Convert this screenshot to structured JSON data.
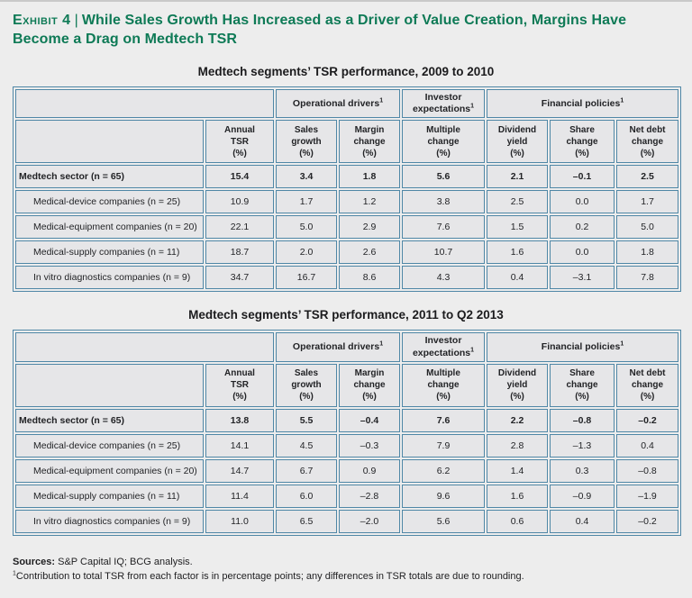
{
  "page": {
    "exhibit_label": "Exhibit 4",
    "divider": "|",
    "title": "While Sales Growth Has Increased as a Driver of Value Creation, Margins Have Become a Drag on Medtech TSR"
  },
  "tables": [
    {
      "title": "Medtech segments’ TSR performance, 2009 to 2010",
      "group_headers": [
        {
          "label": "",
          "sup": "",
          "span": 2
        },
        {
          "label": "Operational drivers",
          "sup": "1",
          "span": 2
        },
        {
          "label": "Investor expectations",
          "sup": "1",
          "span": 1
        },
        {
          "label": "Financial policies",
          "sup": "1",
          "span": 3
        }
      ],
      "column_headers": [
        "",
        "Annual\nTSR\n(%)",
        "Sales\ngrowth\n(%)",
        "Margin\nchange\n(%)",
        "Multiple\nchange\n(%)",
        "Dividend\nyield\n(%)",
        "Share\nchange\n(%)",
        "Net debt\nchange\n(%)"
      ],
      "rows": [
        {
          "label": "Medtech sector (n = 65)",
          "bold": true,
          "indent": false,
          "values": [
            "15.4",
            "3.4",
            "1.8",
            "5.6",
            "2.1",
            "–0.1",
            "2.5"
          ]
        },
        {
          "label": "Medical-device companies (n = 25)",
          "bold": false,
          "indent": true,
          "values": [
            "10.9",
            "1.7",
            "1.2",
            "3.8",
            "2.5",
            "0.0",
            "1.7"
          ]
        },
        {
          "label": "Medical-equipment companies (n = 20)",
          "bold": false,
          "indent": true,
          "values": [
            "22.1",
            "5.0",
            "2.9",
            "7.6",
            "1.5",
            "0.2",
            "5.0"
          ]
        },
        {
          "label": "Medical-supply companies (n = 11)",
          "bold": false,
          "indent": true,
          "values": [
            "18.7",
            "2.0",
            "2.6",
            "10.7",
            "1.6",
            "0.0",
            "1.8"
          ]
        },
        {
          "label": "In vitro diagnostics companies (n = 9)",
          "bold": false,
          "indent": true,
          "values": [
            "34.7",
            "16.7",
            "8.6",
            "4.3",
            "0.4",
            "–3.1",
            "7.8"
          ]
        }
      ]
    },
    {
      "title": "Medtech segments’ TSR performance, 2011 to Q2 2013",
      "group_headers": [
        {
          "label": "",
          "sup": "",
          "span": 2
        },
        {
          "label": "Operational drivers",
          "sup": "1",
          "span": 2
        },
        {
          "label": "Investor expectations",
          "sup": "1",
          "span": 1
        },
        {
          "label": "Financial policies",
          "sup": "1",
          "span": 3
        }
      ],
      "column_headers": [
        "",
        "Annual\nTSR\n(%)",
        "Sales\ngrowth\n(%)",
        "Margin\nchange\n(%)",
        "Multiple\nchange\n(%)",
        "Dividend\nyield\n(%)",
        "Share\nchange\n(%)",
        "Net debt\nchange\n(%)"
      ],
      "rows": [
        {
          "label": "Medtech sector (n = 65)",
          "bold": true,
          "indent": false,
          "values": [
            "13.8",
            "5.5",
            "–0.4",
            "7.6",
            "2.2",
            "–0.8",
            "–0.2"
          ]
        },
        {
          "label": "Medical-device companies (n = 25)",
          "bold": false,
          "indent": true,
          "values": [
            "14.1",
            "4.5",
            "–0.3",
            "7.9",
            "2.8",
            "–1.3",
            "0.4"
          ]
        },
        {
          "label": "Medical-equipment companies (n = 20)",
          "bold": false,
          "indent": true,
          "values": [
            "14.7",
            "6.7",
            "0.9",
            "6.2",
            "1.4",
            "0.3",
            "–0.8"
          ]
        },
        {
          "label": "Medical-supply companies (n = 11)",
          "bold": false,
          "indent": true,
          "values": [
            "11.4",
            "6.0",
            "–2.8",
            "9.6",
            "1.6",
            "–0.9",
            "–1.9"
          ]
        },
        {
          "label": "In vitro diagnostics companies (n = 9)",
          "bold": false,
          "indent": true,
          "values": [
            "11.0",
            "6.5",
            "–2.0",
            "5.6",
            "0.6",
            "0.4",
            "–0.2"
          ]
        }
      ]
    }
  ],
  "footer": {
    "sources_label": "Sources:",
    "sources_text": " S&P Capital IQ; BCG analysis.",
    "footnote_marker": "1",
    "footnote_text": "Contribution to total TSR from each factor is in percentage points; any differences in TSR totals are due to rounding."
  },
  "colors": {
    "title_green": "#0e7a56",
    "table_border_blue": "#4f87a6",
    "cell_background": "#e6e6e8",
    "page_background": "#ededed"
  }
}
